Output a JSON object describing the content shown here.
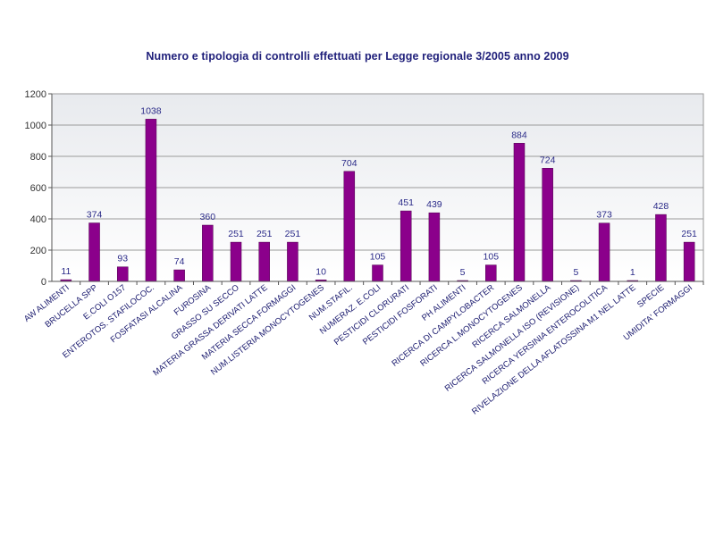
{
  "chart_data": {
    "type": "bar",
    "title": "Numero e tipologia di controlli effettuati per Legge regionale 3/2005 anno 2009",
    "xlabel": "",
    "ylabel": "",
    "ylim": [
      0,
      1200
    ],
    "yticks": [
      0,
      200,
      400,
      600,
      800,
      1000,
      1200
    ],
    "grid": true,
    "legend": "none",
    "colors": {
      "bar": "#8B008B",
      "plot_top": "#e9ecef",
      "plot_bottom": "#ffffff",
      "label": "#2a2a88"
    },
    "categories": [
      "AW ALIMENTI",
      "BRUCELLA SPP",
      "E.COLI O157",
      "ENTEROTOS. STAFILOCOC.",
      "FOSFATASI ALCALINA",
      "FUROSINA",
      "GRASSO SU SECCO",
      "MATERIA GRASSA DERIVATI LATTE",
      "MATERIA SECCA FORMAGGI",
      "NUM.LISTERIA MONOCYTOGENES",
      "NUM.STAFIL.",
      "NUMERAZ. E.COLI",
      "PESTICIDI CLORURATI",
      "PESTICIDI FOSFORATI",
      "PH ALIMENTI",
      "RICERCA DI CAMPYLOBACTER",
      "RICERCA L.MONOCYTOGENES",
      "RICERCA SALMONELLA",
      "RICERCA SALMONELLA ISO (REVISIONE)",
      "RICERCA YERSINIA ENTEROCOLITICA",
      "RIVELAZIONE DELLA AFLATOSSINA M1 NEL LATTE",
      "SPECIE",
      "UMIDITA' FORMAGGI"
    ],
    "values": [
      11,
      374,
      93,
      1038,
      74,
      360,
      251,
      251,
      251,
      10,
      704,
      105,
      451,
      439,
      5,
      105,
      884,
      724,
      5,
      373,
      1,
      428,
      251
    ]
  }
}
